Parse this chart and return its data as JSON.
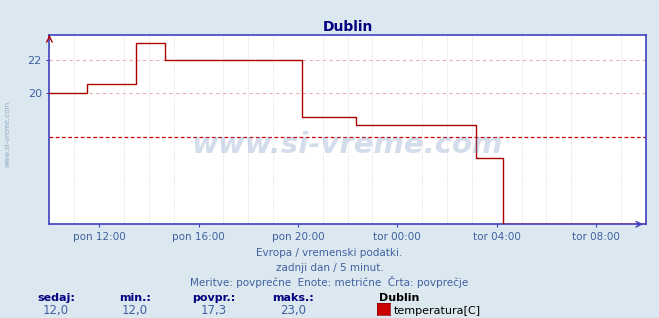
{
  "title": "Dublin",
  "bg_color": "#dce8f0",
  "plot_bg_color": "#ffffff",
  "line_color": "#aa0000",
  "avg_line_color": "#cc0000",
  "grid_color_h": "#e8b0b0",
  "grid_color_v": "#c8c8d8",
  "axis_color": "#4040c0",
  "title_color": "#000080",
  "label_color": "#4060a0",
  "yticks": [
    20,
    22
  ],
  "ylim": [
    12.0,
    23.5
  ],
  "avg_value": 17.3,
  "xlabel_texts": [
    "pon 12:00",
    "pon 16:00",
    "pon 20:00",
    "tor 00:00",
    "tor 04:00",
    "tor 08:00"
  ],
  "xtick_positions": [
    120,
    360,
    600,
    840,
    1080,
    1320
  ],
  "xlim": [
    0,
    1440
  ],
  "subtitle1": "Evropa / vremenski podatki.",
  "subtitle2": "zadnji dan / 5 minut.",
  "subtitle3": "Meritve: povprečne  Enote: metrične  Črta: povprečje",
  "footer_labels": [
    "sedaj:",
    "min.:",
    "povpr.:",
    "maks.:"
  ],
  "footer_values": [
    "12,0",
    "12,0",
    "17,3",
    "23,0"
  ],
  "footer_series": "Dublin",
  "footer_series_label": "temperatura[C]",
  "watermark": "www.si-vreme.com",
  "sidewatermark": "www.si-vreme.com",
  "temp_data_x": [
    0,
    80,
    90,
    200,
    210,
    270,
    280,
    350,
    360,
    600,
    610,
    730,
    740,
    1020,
    1030,
    1095,
    1096,
    1440
  ],
  "temp_data_y": [
    20.0,
    20.0,
    20.5,
    20.5,
    23.0,
    23.0,
    22.0,
    22.0,
    22.0,
    22.0,
    18.5,
    18.5,
    18.0,
    18.0,
    16.0,
    16.0,
    12.0,
    12.0
  ],
  "extra_vgrid_positions": [
    0,
    60,
    180,
    240,
    300,
    420,
    480,
    540,
    660,
    720,
    780,
    900,
    960,
    1020,
    1140,
    1200,
    1260,
    1380,
    1440
  ]
}
